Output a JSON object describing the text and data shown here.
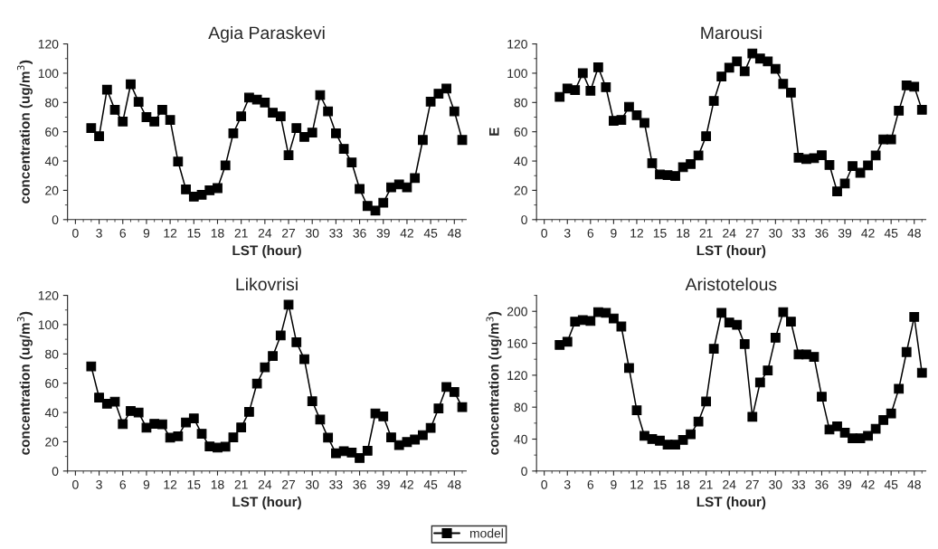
{
  "chart_data": [
    {
      "type": "line",
      "title": "Agia Paraskevi",
      "xlabel": "LST (hour)",
      "ylabel": "concentration (ug/m$^{3}$)",
      "marker": "square",
      "line_style": "solid",
      "grid": false,
      "xlim": [
        -1,
        49.5
      ],
      "xticks": [
        0,
        3,
        6,
        9,
        12,
        15,
        18,
        21,
        24,
        27,
        30,
        33,
        36,
        39,
        42,
        45,
        48
      ],
      "ylim": [
        0,
        120
      ],
      "yticks": [
        0,
        20,
        40,
        60,
        80,
        100,
        120
      ],
      "x": [
        2,
        3,
        4,
        5,
        6,
        7,
        8,
        9,
        10,
        11,
        12,
        13,
        14,
        15,
        16,
        17,
        18,
        19,
        20,
        21,
        22,
        23,
        24,
        25,
        26,
        27,
        28,
        29,
        30,
        31,
        32,
        33,
        34,
        35,
        36,
        37,
        38,
        39,
        40,
        41,
        42,
        43,
        44,
        45,
        46,
        47,
        48,
        49
      ],
      "series": [
        {
          "color": "#000000",
          "values": [
            62.5,
            57,
            88.7,
            75,
            67,
            92.4,
            80.4,
            70,
            67,
            75,
            68,
            39.6,
            20.6,
            15.7,
            17,
            20,
            21.5,
            37,
            59,
            70.5,
            83.3,
            82,
            80,
            73,
            70.5,
            44,
            62.5,
            56.5,
            59.4,
            85,
            74,
            59,
            48.3,
            39,
            21,
            9.3,
            6.2,
            11.5,
            22,
            24,
            22,
            28.3,
            54.4,
            80.6,
            86,
            89.5,
            74,
            54.4
          ]
        }
      ]
    },
    {
      "type": "line",
      "title": "Marousi",
      "xlabel": "LST (hour)",
      "ylabel": "E",
      "marker": "square",
      "line_style": "solid",
      "grid": false,
      "xlim": [
        -1,
        49.5
      ],
      "xticks": [
        0,
        3,
        6,
        9,
        12,
        15,
        18,
        21,
        24,
        27,
        30,
        33,
        36,
        39,
        42,
        45,
        48
      ],
      "ylim": [
        0,
        120
      ],
      "yticks": [
        0,
        20,
        40,
        60,
        80,
        100,
        120
      ],
      "x": [
        2,
        3,
        4,
        5,
        6,
        7,
        8,
        9,
        10,
        11,
        12,
        13,
        14,
        15,
        16,
        17,
        18,
        19,
        20,
        21,
        22,
        23,
        24,
        25,
        26,
        27,
        28,
        29,
        30,
        31,
        32,
        33,
        34,
        35,
        36,
        37,
        38,
        39,
        40,
        41,
        42,
        43,
        44,
        45,
        46,
        47,
        48,
        49
      ],
      "series": [
        {
          "color": "#000000",
          "values": [
            83.8,
            89.6,
            88.5,
            100,
            88,
            104,
            90.4,
            67.5,
            68,
            77,
            71.3,
            66,
            38.5,
            30.8,
            30.4,
            29.8,
            35.8,
            38,
            43.8,
            57,
            81,
            97.7,
            103.8,
            108,
            101.3,
            113.5,
            110,
            108,
            103,
            92.7,
            86.7,
            42.3,
            41.3,
            42,
            44,
            37.3,
            19.2,
            24.6,
            36.5,
            32,
            37,
            43.8,
            54.8,
            54.8,
            74.4,
            91.7,
            90.8,
            75
          ]
        }
      ]
    },
    {
      "type": "line",
      "title": "Likovrisi",
      "xlabel": "LST (hour)",
      "ylabel": "concentration (ug/m$^{3}$)",
      "marker": "square",
      "line_style": "solid",
      "grid": false,
      "xlim": [
        -1,
        49.5
      ],
      "xticks": [
        0,
        3,
        6,
        9,
        12,
        15,
        18,
        21,
        24,
        27,
        30,
        33,
        36,
        39,
        42,
        45,
        48
      ],
      "ylim": [
        0,
        120
      ],
      "yticks": [
        0,
        20,
        40,
        60,
        80,
        100,
        120
      ],
      "x": [
        2,
        3,
        4,
        5,
        6,
        7,
        8,
        9,
        10,
        11,
        12,
        13,
        14,
        15,
        16,
        17,
        18,
        19,
        20,
        21,
        22,
        23,
        24,
        25,
        26,
        27,
        28,
        29,
        30,
        31,
        32,
        33,
        34,
        35,
        36,
        37,
        38,
        39,
        40,
        41,
        42,
        43,
        44,
        45,
        46,
        47,
        48,
        49
      ],
      "series": [
        {
          "color": "#000000",
          "values": [
            71.5,
            50.2,
            46,
            47.4,
            32.1,
            41,
            40,
            29.6,
            32.3,
            31.9,
            22.8,
            23.8,
            33.2,
            36,
            25.5,
            16.8,
            16,
            16.6,
            23,
            29.8,
            40.4,
            59.8,
            70.9,
            78.5,
            92.6,
            113.6,
            88,
            76.4,
            47.7,
            35.1,
            22.8,
            12.1,
            13.6,
            12.6,
            8.9,
            13.8,
            39.4,
            37.4,
            23,
            17.7,
            19.8,
            21.5,
            24.5,
            29.4,
            42.8,
            57.4,
            54,
            43.6
          ]
        }
      ]
    },
    {
      "type": "line",
      "title": "Aristotelous",
      "xlabel": "LST (hour)",
      "ylabel": "concentration (ug/m$^{3}$)",
      "marker": "square",
      "line_style": "solid",
      "grid": false,
      "legend": "bottom",
      "xlim": [
        -1,
        49.5
      ],
      "xticks": [
        0,
        3,
        6,
        9,
        12,
        15,
        18,
        21,
        24,
        27,
        30,
        33,
        36,
        39,
        42,
        45,
        48
      ],
      "ylim": [
        0,
        220
      ],
      "yticks": [
        0,
        40,
        80,
        120,
        160,
        200
      ],
      "x": [
        2,
        3,
        4,
        5,
        6,
        7,
        8,
        9,
        10,
        11,
        12,
        13,
        14,
        15,
        16,
        17,
        18,
        19,
        20,
        21,
        22,
        23,
        24,
        25,
        26,
        27,
        28,
        29,
        30,
        31,
        32,
        33,
        34,
        35,
        36,
        37,
        38,
        39,
        40,
        41,
        42,
        43,
        44,
        45,
        46,
        47,
        48,
        49
      ],
      "series": [
        {
          "name": "model",
          "color": "#000000",
          "values": [
            158,
            162,
            187,
            189,
            188,
            199,
            198,
            191,
            181,
            129,
            76,
            44,
            40,
            38,
            33,
            33,
            39,
            46,
            62,
            87,
            153,
            198,
            186,
            183,
            159,
            68,
            111,
            126,
            167,
            199,
            187,
            146,
            146,
            143,
            93,
            52,
            56,
            48,
            41,
            41,
            44,
            53,
            64,
            72,
            103,
            149,
            193,
            123
          ]
        }
      ]
    }
  ]
}
